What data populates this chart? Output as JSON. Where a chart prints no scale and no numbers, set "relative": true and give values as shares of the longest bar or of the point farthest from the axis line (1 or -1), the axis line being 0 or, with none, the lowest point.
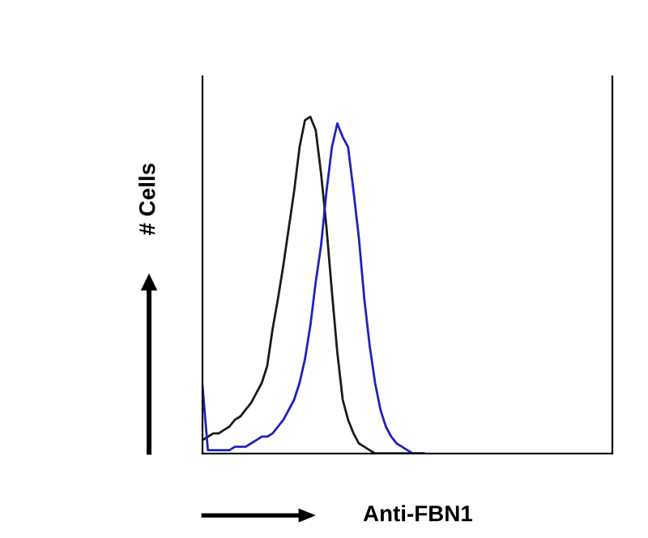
{
  "chart_data": {
    "type": "line",
    "relative": true,
    "xlabel": "Anti-FBN1",
    "ylabel": "# Cells",
    "categories": [
      null,
      null,
      null,
      null,
      null,
      null,
      null,
      null,
      null,
      null,
      null,
      null,
      null,
      null,
      null,
      null,
      null,
      null,
      null,
      null,
      null,
      null,
      null,
      null,
      null,
      null,
      null,
      null,
      null,
      null,
      null,
      null,
      null,
      null,
      null,
      null,
      null,
      null,
      null,
      null,
      null,
      null,
      null,
      null,
      null,
      null,
      null,
      null,
      null,
      null,
      null,
      null,
      null,
      null,
      null,
      null,
      null,
      null,
      null,
      null,
      null,
      null,
      null,
      null,
      null,
      null,
      null,
      null,
      null,
      null,
      null,
      null,
      null,
      null,
      null,
      null,
      null
    ],
    "series": [
      {
        "color": "#1a1a1a",
        "values": [
          0.04,
          0.05,
          0.06,
          0.06,
          0.07,
          0.08,
          0.1,
          0.11,
          0.13,
          0.15,
          0.18,
          0.21,
          0.26,
          0.37,
          0.46,
          0.56,
          0.67,
          0.78,
          0.91,
          0.99,
          1.0,
          0.96,
          0.83,
          0.67,
          0.48,
          0.3,
          0.16,
          0.1,
          0.06,
          0.03,
          0.02,
          0.01,
          0.0,
          0.0,
          0.0,
          0.0,
          0.0,
          0.0,
          0.0,
          0.0,
          0.0,
          0.0,
          null,
          null,
          null,
          null,
          null,
          null,
          null,
          null,
          null,
          null,
          null,
          null,
          null,
          null,
          null,
          null,
          null,
          null,
          null,
          null,
          null,
          null,
          null,
          null,
          null,
          null,
          null,
          null,
          null,
          null,
          null,
          null,
          null,
          null,
          null
        ]
      },
      {
        "color": "#2020c0",
        "values": [
          0.2,
          0.01,
          0.01,
          0.01,
          0.01,
          0.01,
          0.02,
          0.02,
          0.02,
          0.03,
          0.04,
          0.05,
          0.05,
          0.06,
          0.08,
          0.1,
          0.13,
          0.16,
          0.21,
          0.28,
          0.38,
          0.51,
          0.62,
          0.78,
          0.91,
          0.98,
          0.94,
          0.91,
          0.78,
          0.64,
          0.46,
          0.32,
          0.21,
          0.13,
          0.08,
          0.05,
          0.03,
          0.02,
          0.01,
          0.0,
          0.0,
          0.0,
          null,
          null,
          null,
          null,
          null,
          null,
          null,
          null,
          null,
          null,
          null,
          null,
          null,
          null,
          null,
          null,
          null,
          null,
          null,
          null,
          null,
          null,
          null,
          null,
          null,
          null,
          null,
          null,
          null,
          null,
          null,
          null,
          null,
          null,
          null
        ]
      }
    ],
    "line_style": "solid",
    "marker": "none",
    "grid": false,
    "legend": false
  }
}
